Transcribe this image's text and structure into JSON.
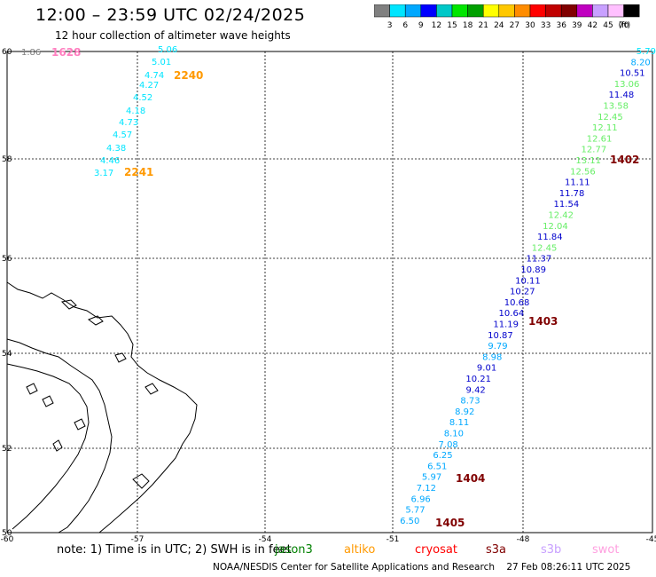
{
  "title": "12:00 – 23:59 UTC 02/24/2025",
  "subtitle": "12 hour collection of altimeter wave heights",
  "legend": {
    "colors": [
      "#808080",
      "#00e5ff",
      "#00a8ff",
      "#0000ff",
      "#00c8c8",
      "#00e600",
      "#00a000",
      "#ffff00",
      "#ffc800",
      "#ff8c00",
      "#ff0000",
      "#c00000",
      "#800000",
      "#c000c0",
      "#c8a0ff",
      "#ffc0ff",
      "#000000"
    ],
    "labels": [
      "3",
      "6",
      "9",
      "12",
      "15",
      "18",
      "21",
      "24",
      "27",
      "30",
      "33",
      "36",
      "39",
      "42",
      "45",
      "70"
    ],
    "unit": "(ft)"
  },
  "axes": {
    "lat_labels": [
      "60",
      "58",
      "56",
      "54",
      "52",
      "50"
    ],
    "lon_labels": [
      "-60",
      "-57",
      "-54",
      "-51",
      "-48",
      "-45"
    ]
  },
  "tracks": [
    {
      "name": "track-west",
      "points": [
        {
          "v": "1.86",
          "c": "#808080"
        },
        {
          "v": "5.06",
          "c": "#00e5ff"
        },
        {
          "v": "5.01",
          "c": "#00e5ff"
        },
        {
          "v": "4.74",
          "c": "#00e5ff"
        },
        {
          "v": "4.27",
          "c": "#00e5ff"
        },
        {
          "v": "4.52",
          "c": "#00e5ff"
        },
        {
          "v": "4.18",
          "c": "#00e5ff"
        },
        {
          "v": "4.73",
          "c": "#00e5ff"
        },
        {
          "v": "4.57",
          "c": "#00e5ff"
        },
        {
          "v": "4.38",
          "c": "#00e5ff"
        },
        {
          "v": "4.46",
          "c": "#00e5ff"
        },
        {
          "v": "3.17",
          "c": "#00e5ff"
        }
      ]
    },
    {
      "name": "track-east",
      "points": [
        {
          "v": "5.79",
          "c": "#00e5ff"
        },
        {
          "v": "8.20",
          "c": "#00a8ff"
        },
        {
          "v": "10.51",
          "c": "#0000cc"
        },
        {
          "v": "13.06",
          "c": "#66ee66"
        },
        {
          "v": "11.48",
          "c": "#0000cc"
        },
        {
          "v": "13.58",
          "c": "#66ee66"
        },
        {
          "v": "12.45",
          "c": "#66ee66"
        },
        {
          "v": "12.11",
          "c": "#66ee66"
        },
        {
          "v": "12.61",
          "c": "#66ee66"
        },
        {
          "v": "12.77",
          "c": "#66ee66"
        },
        {
          "v": "13.11",
          "c": "#66ee66"
        },
        {
          "v": "12.56",
          "c": "#66ee66"
        },
        {
          "v": "11.11",
          "c": "#0000cc"
        },
        {
          "v": "11.78",
          "c": "#0000cc"
        },
        {
          "v": "11.54",
          "c": "#0000cc"
        },
        {
          "v": "12.42",
          "c": "#66ee66"
        },
        {
          "v": "12.04",
          "c": "#66ee66"
        },
        {
          "v": "11.84",
          "c": "#0000cc"
        },
        {
          "v": "12.45",
          "c": "#66ee66"
        },
        {
          "v": "11.37",
          "c": "#0000cc"
        },
        {
          "v": "10.89",
          "c": "#0000cc"
        },
        {
          "v": "10.11",
          "c": "#0000cc"
        },
        {
          "v": "10.27",
          "c": "#0000cc"
        },
        {
          "v": "10.68",
          "c": "#0000cc"
        },
        {
          "v": "10.64",
          "c": "#0000cc"
        },
        {
          "v": "11.19",
          "c": "#0000cc"
        },
        {
          "v": "10.87",
          "c": "#0000cc"
        },
        {
          "v": "9.79",
          "c": "#00a8ff"
        },
        {
          "v": "8.98",
          "c": "#00a8ff"
        },
        {
          "v": "9.01",
          "c": "#0000cc"
        },
        {
          "v": "10.21",
          "c": "#0000cc"
        },
        {
          "v": "9.42",
          "c": "#0000cc"
        },
        {
          "v": "8.73",
          "c": "#00a8ff"
        },
        {
          "v": "8.92",
          "c": "#00a8ff"
        },
        {
          "v": "8.11",
          "c": "#00a8ff"
        },
        {
          "v": "8.10",
          "c": "#00a8ff"
        },
        {
          "v": "7.08",
          "c": "#00a8ff"
        },
        {
          "v": "6.25",
          "c": "#00a8ff"
        },
        {
          "v": "6.51",
          "c": "#00a8ff"
        },
        {
          "v": "5.97",
          "c": "#00a8ff"
        },
        {
          "v": "7.12",
          "c": "#00a8ff"
        },
        {
          "v": "6.96",
          "c": "#00a8ff"
        },
        {
          "v": "5.77",
          "c": "#00a8ff"
        },
        {
          "v": "6.50",
          "c": "#00a8ff"
        }
      ]
    }
  ],
  "time_labels": [
    {
      "t": "1628",
      "c": "#ff80c0"
    },
    {
      "t": "2240",
      "c": "#ff9900"
    },
    {
      "t": "2241",
      "c": "#ff9900"
    },
    {
      "t": "1402",
      "c": "#800000"
    },
    {
      "t": "1403",
      "c": "#800000"
    },
    {
      "t": "1404",
      "c": "#800000"
    },
    {
      "t": "1405",
      "c": "#800000"
    }
  ],
  "footer": {
    "note": "note:  1) Time is in UTC;  2) SWH is in feet",
    "satellites": [
      {
        "name": "jason3",
        "c": "#008000"
      },
      {
        "name": "altiko",
        "c": "#ff9900"
      },
      {
        "name": "cryosat",
        "c": "#ff0000"
      },
      {
        "name": "s3a",
        "c": "#800000"
      },
      {
        "name": "s3b",
        "c": "#c8a0ff"
      },
      {
        "name": "swot",
        "c": "#ffa0e0"
      }
    ],
    "credit": "NOAA/NESDIS Center for Satellite Applications and Research",
    "timestamp": "27 Feb 08:26:11 UTC 2025"
  }
}
